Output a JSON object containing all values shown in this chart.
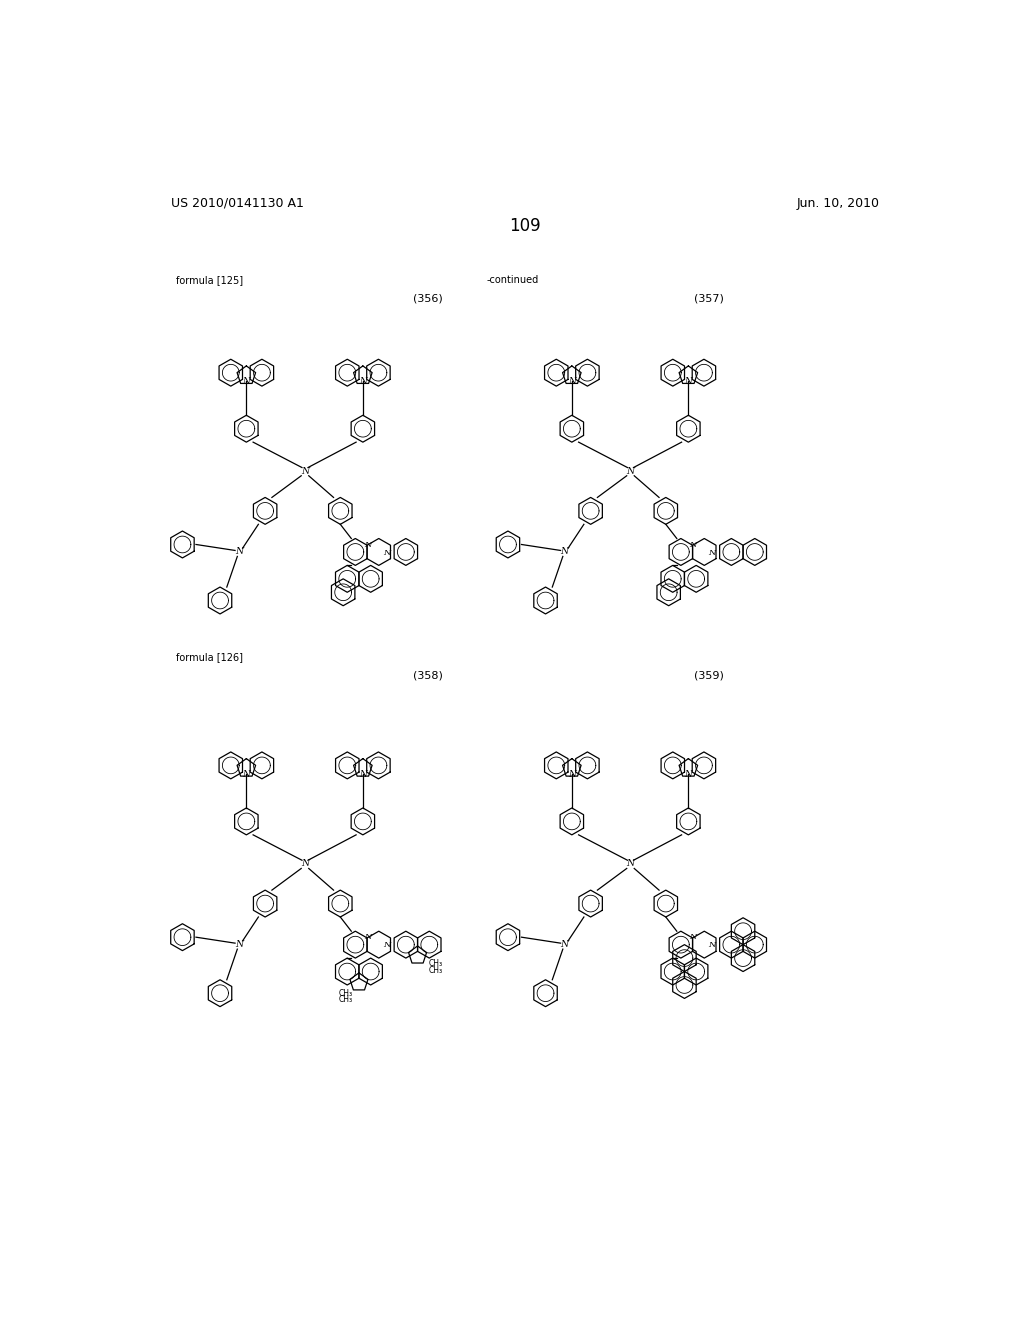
{
  "page_number": "109",
  "patent_number": "US 2010/0141130 A1",
  "patent_date": "Jun. 10, 2010",
  "continued_text": "-continued",
  "formula_labels": [
    "formula [125]",
    "formula [126]"
  ],
  "compound_numbers": [
    "(356)",
    "(357)",
    "(358)",
    "(359)"
  ],
  "background_color": "#ffffff",
  "text_color": "#000000",
  "line_color": "#000000",
  "font_size_header": 9,
  "font_size_page": 12,
  "font_size_label": 7,
  "font_size_compound": 8
}
